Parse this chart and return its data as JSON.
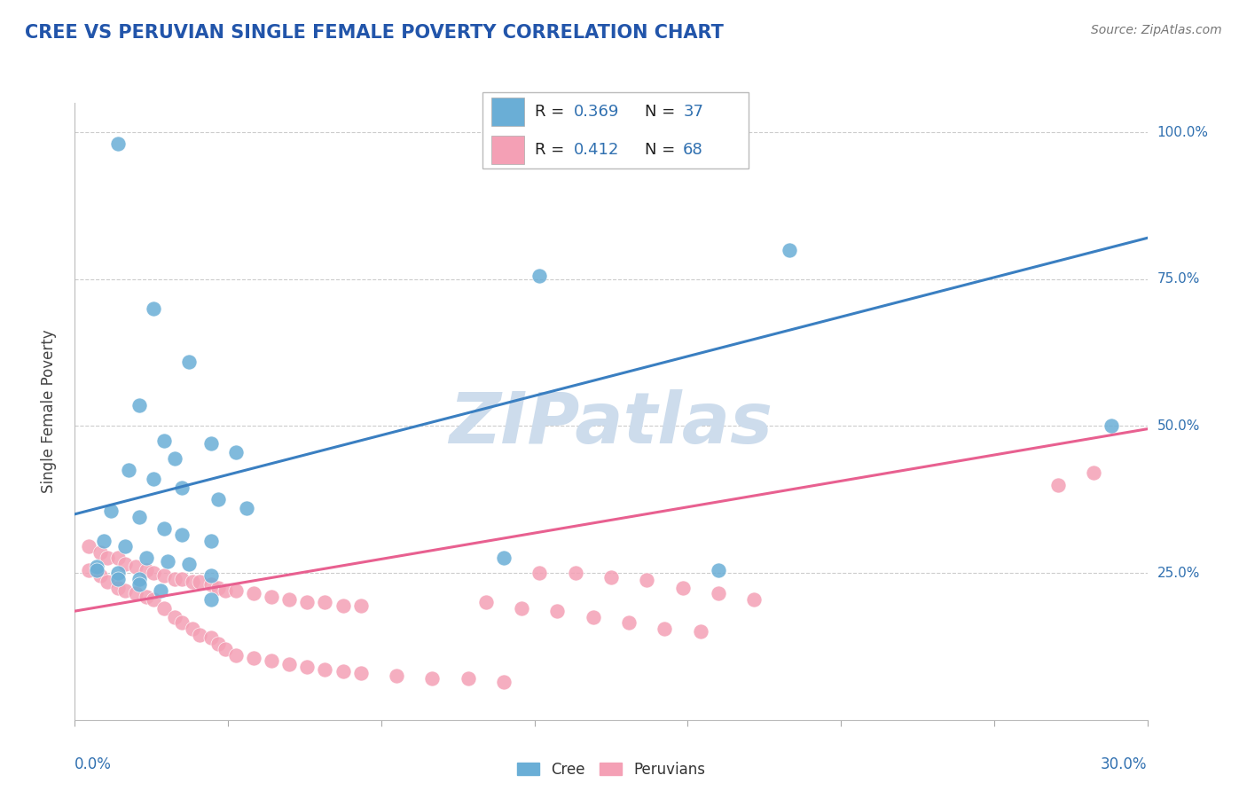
{
  "title": "CREE VS PERUVIAN SINGLE FEMALE POVERTY CORRELATION CHART",
  "source_text": "Source: ZipAtlas.com",
  "ylabel": "Single Female Poverty",
  "xlim": [
    0.0,
    0.3
  ],
  "ylim": [
    0.0,
    1.05
  ],
  "cree_color": "#6aaed6",
  "peruvian_color": "#f4a0b5",
  "cree_line_color": "#3a7fc1",
  "peruvian_line_color": "#e86090",
  "cree_R": "0.369",
  "cree_N": "37",
  "peruvian_R": "0.412",
  "peruvian_N": "68",
  "legend_val_color": "#3070b0",
  "legend_label_color": "#222222",
  "watermark": "ZIPatlas",
  "watermark_color": "#cddcec",
  "ytick_vals": [
    0.25,
    0.5,
    0.75,
    1.0
  ],
  "ytick_labels": [
    "25.0%",
    "50.0%",
    "75.0%",
    "100.0%"
  ],
  "grid_color": "#cccccc",
  "cree_trend": [
    0.35,
    0.82
  ],
  "peruvian_trend": [
    0.185,
    0.495
  ],
  "cree_scatter_x": [
    0.012,
    0.022,
    0.032,
    0.018,
    0.025,
    0.038,
    0.045,
    0.028,
    0.015,
    0.022,
    0.03,
    0.04,
    0.048,
    0.01,
    0.018,
    0.025,
    0.03,
    0.038,
    0.008,
    0.014,
    0.02,
    0.026,
    0.032,
    0.006,
    0.012,
    0.018,
    0.038,
    0.006,
    0.012,
    0.018,
    0.024,
    0.038,
    0.12,
    0.18,
    0.29,
    0.13,
    0.2
  ],
  "cree_scatter_y": [
    0.98,
    0.7,
    0.61,
    0.535,
    0.475,
    0.47,
    0.455,
    0.445,
    0.425,
    0.41,
    0.395,
    0.375,
    0.36,
    0.355,
    0.345,
    0.325,
    0.315,
    0.305,
    0.305,
    0.295,
    0.275,
    0.27,
    0.265,
    0.26,
    0.25,
    0.24,
    0.245,
    0.255,
    0.24,
    0.23,
    0.22,
    0.205,
    0.275,
    0.255,
    0.5,
    0.755,
    0.8
  ],
  "peruvian_scatter_x": [
    0.004,
    0.007,
    0.009,
    0.012,
    0.014,
    0.017,
    0.02,
    0.022,
    0.025,
    0.028,
    0.03,
    0.033,
    0.035,
    0.038,
    0.04,
    0.042,
    0.045,
    0.05,
    0.055,
    0.06,
    0.065,
    0.07,
    0.075,
    0.08,
    0.004,
    0.007,
    0.009,
    0.012,
    0.014,
    0.017,
    0.02,
    0.022,
    0.025,
    0.028,
    0.03,
    0.033,
    0.035,
    0.038,
    0.04,
    0.042,
    0.045,
    0.05,
    0.055,
    0.06,
    0.065,
    0.07,
    0.075,
    0.08,
    0.09,
    0.1,
    0.11,
    0.12,
    0.13,
    0.14,
    0.15,
    0.16,
    0.17,
    0.18,
    0.19,
    0.115,
    0.125,
    0.135,
    0.145,
    0.155,
    0.165,
    0.175,
    0.285,
    0.275
  ],
  "peruvian_scatter_y": [
    0.295,
    0.285,
    0.275,
    0.275,
    0.265,
    0.26,
    0.255,
    0.25,
    0.245,
    0.24,
    0.24,
    0.235,
    0.235,
    0.23,
    0.225,
    0.22,
    0.22,
    0.215,
    0.21,
    0.205,
    0.2,
    0.2,
    0.195,
    0.195,
    0.255,
    0.245,
    0.235,
    0.225,
    0.22,
    0.215,
    0.21,
    0.205,
    0.19,
    0.175,
    0.165,
    0.155,
    0.145,
    0.14,
    0.13,
    0.12,
    0.11,
    0.105,
    0.1,
    0.095,
    0.09,
    0.085,
    0.082,
    0.08,
    0.075,
    0.07,
    0.07,
    0.065,
    0.25,
    0.25,
    0.242,
    0.238,
    0.225,
    0.215,
    0.205,
    0.2,
    0.19,
    0.185,
    0.175,
    0.165,
    0.155,
    0.15,
    0.42,
    0.4
  ]
}
